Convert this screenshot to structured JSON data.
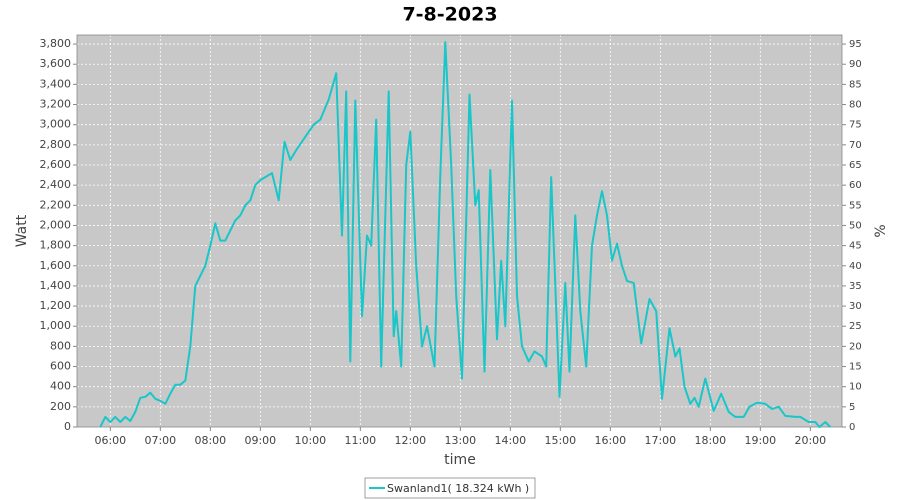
{
  "chart_data": {
    "type": "line",
    "title": "7-8-2023",
    "xlabel": "time",
    "ylabel": "Watt",
    "y2label": "%",
    "x": [
      "05:48",
      "05:54",
      "06:00",
      "06:06",
      "06:12",
      "06:18",
      "06:24",
      "06:30",
      "06:36",
      "06:42",
      "06:48",
      "06:54",
      "07:00",
      "07:06",
      "07:12",
      "07:18",
      "07:24",
      "07:30",
      "07:36",
      "07:42",
      "07:48",
      "07:54",
      "08:00",
      "08:06",
      "08:12",
      "08:18",
      "08:24",
      "08:30",
      "08:36",
      "08:42",
      "08:48",
      "08:54",
      "09:00",
      "09:14",
      "09:22",
      "09:29",
      "09:36",
      "09:44",
      "09:54",
      "10:04",
      "10:12",
      "10:22",
      "10:31",
      "10:38",
      "10:43",
      "10:48",
      "10:54",
      "11:02",
      "11:08",
      "11:13",
      "11:19",
      "11:25",
      "11:34",
      "11:40",
      "11:43",
      "11:49",
      "11:55",
      "12:00",
      "12:07",
      "12:14",
      "12:20",
      "12:29",
      "12:36",
      "12:42",
      "12:49",
      "12:55",
      "13:02",
      "13:11",
      "13:18",
      "13:22",
      "13:29",
      "13:36",
      "13:44",
      "13:49",
      "13:54",
      "14:02",
      "14:08",
      "14:14",
      "14:22",
      "14:29",
      "14:38",
      "14:43",
      "14:49",
      "14:59",
      "15:06",
      "15:11",
      "15:18",
      "15:24",
      "15:31",
      "15:38",
      "15:44",
      "15:50",
      "15:56",
      "16:02",
      "16:08",
      "16:14",
      "16:20",
      "16:28",
      "16:37",
      "16:47",
      "16:55",
      "17:02",
      "17:11",
      "17:18",
      "17:23",
      "17:29",
      "17:36",
      "17:41",
      "17:46",
      "17:54",
      "18:04",
      "18:13",
      "18:22",
      "18:30",
      "18:40",
      "18:47",
      "18:56",
      "19:06",
      "19:14",
      "19:22",
      "19:30",
      "19:42",
      "19:48",
      "19:58",
      "20:06",
      "20:11",
      "20:18",
      "20:24"
    ],
    "series": [
      {
        "name": "Swanland1( 18.324 kWh )",
        "color": "#1ac6c8",
        "values": [
          0,
          100,
          50,
          100,
          50,
          100,
          60,
          150,
          290,
          300,
          340,
          280,
          260,
          230,
          330,
          420,
          420,
          460,
          800,
          1400,
          1500,
          1600,
          1800,
          2020,
          1850,
          1850,
          1950,
          2050,
          2100,
          2200,
          2250,
          2400,
          2450,
          2520,
          2250,
          2830,
          2650,
          2760,
          2880,
          3000,
          3050,
          3250,
          3510,
          1900,
          3330,
          650,
          3240,
          1100,
          1900,
          1800,
          3050,
          600,
          3330,
          900,
          1150,
          600,
          2600,
          2930,
          1600,
          800,
          1000,
          600,
          2500,
          3820,
          2600,
          1300,
          480,
          3300,
          2200,
          2350,
          550,
          2550,
          870,
          1650,
          1000,
          3240,
          1300,
          800,
          650,
          750,
          700,
          600,
          2480,
          300,
          1430,
          550,
          2100,
          1150,
          600,
          1800,
          2100,
          2340,
          2100,
          1650,
          1820,
          1600,
          1450,
          1430,
          830,
          1270,
          1150,
          280,
          980,
          700,
          780,
          400,
          230,
          290,
          200,
          480,
          160,
          330,
          150,
          100,
          100,
          200,
          240,
          230,
          180,
          200,
          110,
          100,
          100,
          50,
          50,
          0,
          50,
          0
        ]
      }
    ],
    "xlim": [
      "05:20",
      "20:38"
    ],
    "xticks": [
      "06:00",
      "07:00",
      "08:00",
      "09:00",
      "10:00",
      "11:00",
      "12:00",
      "13:00",
      "14:00",
      "15:00",
      "16:00",
      "17:00",
      "18:00",
      "19:00",
      "20:00"
    ],
    "ylim": [
      0,
      3890
    ],
    "yticks": [
      0,
      200,
      400,
      600,
      800,
      {
        "value": 1000,
        "label": "1,000"
      },
      {
        "value": 1200,
        "label": "1,200"
      },
      {
        "value": 1400,
        "label": "1,400"
      },
      {
        "value": 1600,
        "label": "1,600"
      },
      {
        "value": 1800,
        "label": "1,800"
      },
      {
        "value": 2000,
        "label": "2,000"
      },
      {
        "value": 2200,
        "label": "2,200"
      },
      {
        "value": 2400,
        "label": "2,400"
      },
      {
        "value": 2600,
        "label": "2,600"
      },
      {
        "value": 2800,
        "label": "2,800"
      },
      {
        "value": 3000,
        "label": "3,000"
      },
      {
        "value": 3200,
        "label": "3,200"
      },
      {
        "value": 3400,
        "label": "3,400"
      },
      {
        "value": 3600,
        "label": "3,600"
      },
      {
        "value": 3800,
        "label": "3,800"
      }
    ],
    "y2lim": [
      0,
      97.25
    ],
    "y2ticks": [
      0,
      5,
      10,
      15,
      20,
      25,
      30,
      35,
      40,
      45,
      50,
      55,
      60,
      65,
      70,
      75,
      80,
      85,
      90,
      95
    ],
    "grid": true,
    "legend": "bottom"
  }
}
